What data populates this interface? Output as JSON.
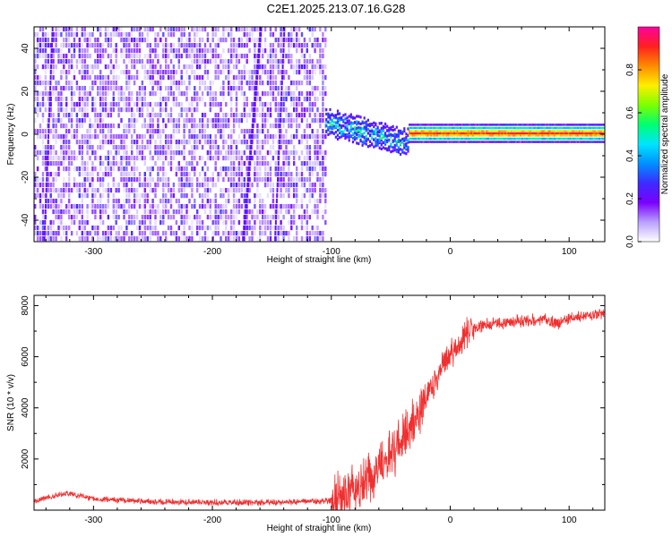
{
  "title": "C2E1.2025.213.07.16.G28",
  "chart_data": [
    {
      "type": "heatmap",
      "xlabel": "Height of straight line (km)",
      "ylabel": "Frequency (Hz)",
      "xlim": [
        -350,
        130
      ],
      "ylim": [
        -50,
        50
      ],
      "x_ticks": [
        -300,
        -200,
        -100,
        0,
        100
      ],
      "y_ticks": [
        -40,
        -20,
        0,
        20,
        40
      ],
      "colorbar": {
        "label": "Normalized spectral amplitude",
        "range": [
          0,
          1
        ],
        "ticks": [
          0.0,
          0.2,
          0.4,
          0.6,
          0.8
        ],
        "colors": [
          "#ffffff",
          "#b9a0ff",
          "#7a00ff",
          "#3d2bff",
          "#0090ff",
          "#00e5ff",
          "#00ff70",
          "#7dff00",
          "#ffee00",
          "#ff8a00",
          "#ff2020",
          "#ff00a0"
        ]
      },
      "regions": [
        {
          "name": "noise",
          "x": [
            -350,
            -105
          ],
          "freq_spread": [
            -50,
            50
          ],
          "amplitude": [
            0.0,
            0.25
          ]
        },
        {
          "name": "transition",
          "x": [
            -105,
            -35
          ],
          "freq_center": [
            5,
            -5
          ],
          "amplitude": [
            0.2,
            0.6
          ]
        },
        {
          "name": "carrier",
          "x": [
            -35,
            130
          ],
          "freq_center": 0,
          "amplitude": [
            0.7,
            0.95
          ]
        }
      ]
    },
    {
      "type": "line",
      "xlabel": "Height of straight line (km)",
      "ylabel": "SNR (10 * v/v)",
      "xlim": [
        -350,
        130
      ],
      "ylim": [
        0,
        8400
      ],
      "x_ticks": [
        -300,
        -200,
        -100,
        0,
        100
      ],
      "y_ticks": [
        2000,
        4000,
        6000,
        8000
      ],
      "color": "#f03030",
      "x": [
        -350,
        -330,
        -320,
        -300,
        -250,
        -200,
        -150,
        -110,
        -95,
        -85,
        -70,
        -55,
        -45,
        -35,
        -25,
        -15,
        -5,
        5,
        15,
        25,
        40,
        60,
        80,
        90,
        100,
        115,
        130
      ],
      "y": [
        350,
        600,
        650,
        450,
        330,
        300,
        300,
        350,
        400,
        700,
        1100,
        1900,
        2500,
        3000,
        3800,
        4800,
        5700,
        6400,
        7000,
        7200,
        7300,
        7400,
        7450,
        7300,
        7500,
        7600,
        7650
      ]
    }
  ]
}
